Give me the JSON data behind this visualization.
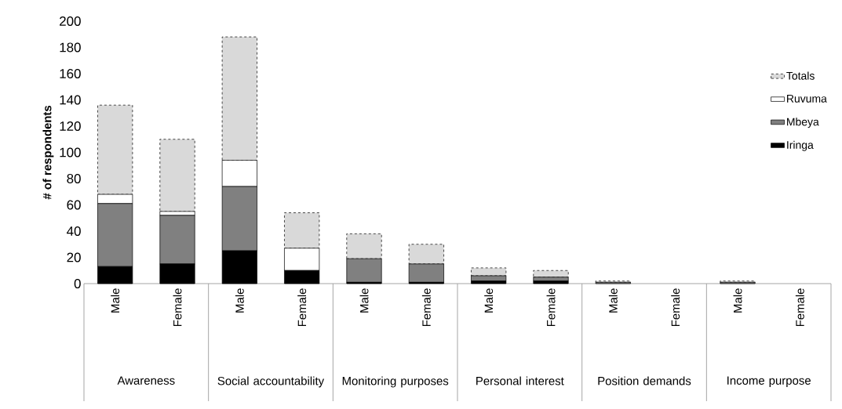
{
  "chart_data": {
    "type": "bar",
    "stacked": true,
    "ylabel": "# of respondents",
    "categories": [
      "Male",
      "Female",
      "Male",
      "Female",
      "Male",
      "Female",
      "Male",
      "Female",
      "Male",
      "Female",
      "Male",
      "Female"
    ],
    "series": [
      {
        "name": "Iringa",
        "color": "#000000",
        "values": [
          13,
          15,
          25,
          10,
          1,
          1,
          2,
          2,
          0,
          0,
          0,
          0
        ]
      },
      {
        "name": "Mbeya",
        "color": "#808080",
        "values": [
          48,
          37,
          49,
          0,
          18,
          14,
          4,
          3,
          1,
          0,
          1,
          0
        ]
      },
      {
        "name": "Ruvuma",
        "color": "#ffffff",
        "values": [
          7,
          3,
          20,
          17,
          0,
          0,
          0,
          0,
          0,
          0,
          0,
          0
        ]
      },
      {
        "name": "Totals",
        "color": "#d9d9d9",
        "line_style": "dashed",
        "values": [
          68,
          55,
          94,
          27,
          19,
          15,
          6,
          5,
          1,
          0,
          1,
          0
        ]
      }
    ],
    "ylim": [
      0,
      200
    ],
    "yticks": [
      0,
      20,
      40,
      60,
      80,
      100,
      120,
      140,
      160,
      180,
      200
    ],
    "legend": "right",
    "annotations": [
      "Awareness",
      "Social accountability",
      "Monitoring purposes",
      "Personal interest",
      "Position demands",
      "Income purpose"
    ]
  }
}
